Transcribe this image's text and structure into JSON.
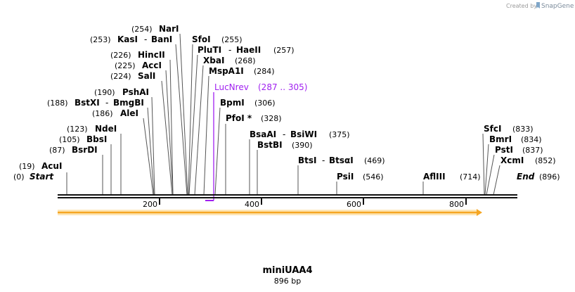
{
  "plasmid": {
    "name": "miniUAA4",
    "length_label": "896 bp",
    "length": 896
  },
  "branding": {
    "created_by": "Created by",
    "app": "SnapGene"
  },
  "ruler": {
    "ticks": [
      "200",
      "400",
      "600",
      "800"
    ]
  },
  "ends": {
    "start": {
      "pos": "(0)",
      "name": "Start"
    },
    "end": {
      "name": "End",
      "pos": "(896)"
    }
  },
  "primer": {
    "name": "LucNrev",
    "range": "(287 .. 305)",
    "color": "#a020f0"
  },
  "feature": {
    "color": "#f5a623"
  },
  "sites": [
    {
      "name": "AcuI",
      "pos": "(19)"
    },
    {
      "name": "BsrDI",
      "pos": "(87)"
    },
    {
      "name": "BbsI",
      "pos": "(105)"
    },
    {
      "name": "NdeI",
      "pos": "(123)"
    },
    {
      "name": "AleI",
      "pos": "(186)"
    },
    {
      "name": "BstXI",
      "name2": "BmgBI",
      "pos": "(188)"
    },
    {
      "name": "PshAI",
      "pos": "(190)"
    },
    {
      "name": "SalI",
      "pos": "(224)"
    },
    {
      "name": "AccI",
      "pos": "(225)"
    },
    {
      "name": "HincII",
      "pos": "(226)"
    },
    {
      "name": "KasI",
      "name2": "BanI",
      "pos": "(253)"
    },
    {
      "name": "NarI",
      "pos": "(254)"
    },
    {
      "name": "SfoI",
      "pos": "(255)"
    },
    {
      "name": "PluTI",
      "name2": "HaeII",
      "pos": "(257)"
    },
    {
      "name": "XbaI",
      "pos": "(268)"
    },
    {
      "name": "MspA1I",
      "pos": "(284)"
    },
    {
      "name": "BpmI",
      "pos": "(306)"
    },
    {
      "name": "PfoI *",
      "pos": "(328)"
    },
    {
      "name": "BsaAI",
      "name2": "BsiWI",
      "pos": "(375)"
    },
    {
      "name": "BstBI",
      "pos": "(390)"
    },
    {
      "name": "BtsI",
      "name2": "BtsαI",
      "pos": "(469)"
    },
    {
      "name": "PsiI",
      "pos": "(546)"
    },
    {
      "name": "AflIII",
      "pos": "(714)"
    },
    {
      "name": "SfcI",
      "pos": "(833)"
    },
    {
      "name": "BmrI",
      "pos": "(834)"
    },
    {
      "name": "PstI",
      "pos": "(837)"
    },
    {
      "name": "XcmI",
      "pos": "(852)"
    }
  ]
}
